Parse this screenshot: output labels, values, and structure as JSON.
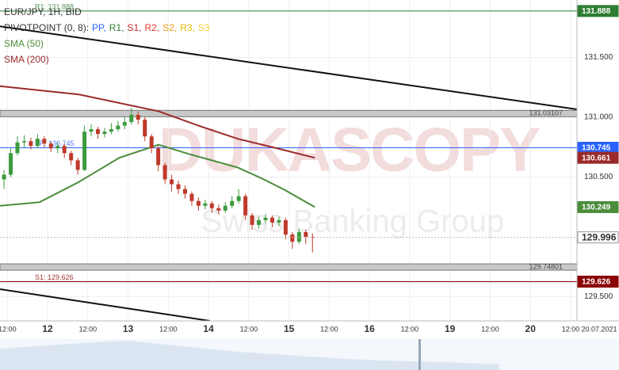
{
  "chart_data": {
    "type": "candlestick",
    "title": "EUR/JPY, 1H, BID",
    "pivot_title": "PIVOTPOINT (0, 8):",
    "pivot_legend": [
      {
        "text": "PP,",
        "color": "#2962ff"
      },
      {
        "text": "R1,",
        "color": "#2e7d32"
      },
      {
        "text": "S1,",
        "color": "#c62828"
      },
      {
        "text": "R2,",
        "color": "#e53935"
      },
      {
        "text": "S2,",
        "color": "#f39c12"
      },
      {
        "text": "R3,",
        "color": "#e6b800"
      },
      {
        "text": "S3",
        "color": "#f4d03f"
      }
    ],
    "watermark": "DUKASCOPY",
    "watermark_sub": "Swiss Banking Group",
    "x_axis_date": "20.07.2021",
    "xlim": [
      9.8,
      181.9
    ],
    "xticks": [
      {
        "value": 12,
        "label": "12:00"
      },
      {
        "value": 24,
        "label": "12"
      },
      {
        "value": 36,
        "label": "12:00"
      },
      {
        "value": 48,
        "label": "13"
      },
      {
        "value": 60,
        "label": "12:00"
      },
      {
        "value": 72,
        "label": "14"
      },
      {
        "value": 84,
        "label": "12:00"
      },
      {
        "value": 96,
        "label": "15"
      },
      {
        "value": 108,
        "label": "12:00"
      },
      {
        "value": 120,
        "label": "16"
      },
      {
        "value": 132,
        "label": "12:00"
      },
      {
        "value": 144,
        "label": "19"
      },
      {
        "value": 156,
        "label": "12:00"
      },
      {
        "value": 168,
        "label": "20"
      },
      {
        "value": 180,
        "label": "12:00"
      }
    ],
    "ylim": [
      129.298,
      131.98
    ],
    "yticks": [
      {
        "value": 131.5,
        "label": "131.500"
      },
      {
        "value": 131,
        "label": "131.000"
      },
      {
        "value": 130.5,
        "label": "130.500"
      },
      {
        "value": 129.5,
        "label": "129.500"
      }
    ],
    "grid": true,
    "candles": {
      "up_color": "#3c9a3c",
      "down_color": "#c0392b",
      "x": [
        11,
        13,
        15,
        17,
        19,
        21,
        23,
        25,
        27,
        29,
        31,
        33,
        35,
        37,
        39,
        41,
        43,
        45,
        47,
        49,
        51,
        53,
        55,
        57,
        59,
        61,
        63,
        65,
        67,
        69,
        71,
        73,
        75,
        77,
        79,
        81,
        83,
        85,
        87,
        89,
        91,
        93,
        95,
        97,
        99,
        101,
        103
      ],
      "open": [
        130.48,
        130.52,
        130.7,
        130.79,
        130.8,
        130.76,
        130.82,
        130.78,
        130.74,
        130.76,
        130.7,
        130.64,
        130.56,
        130.88,
        130.9,
        130.86,
        130.88,
        130.9,
        130.93,
        130.96,
        131.02,
        130.98,
        130.84,
        130.74,
        130.6,
        130.48,
        130.44,
        130.4,
        130.36,
        130.3,
        130.26,
        130.28,
        130.24,
        130.22,
        130.26,
        130.3,
        130.34,
        130.18,
        130.1,
        130.14,
        130.16,
        130.12,
        130.14,
        130.02,
        129.96,
        130.04,
        130.0
      ],
      "high": [
        130.56,
        130.74,
        130.84,
        130.85,
        130.83,
        130.86,
        130.84,
        130.8,
        130.79,
        130.78,
        130.72,
        130.66,
        130.93,
        130.94,
        130.92,
        130.91,
        130.95,
        130.97,
        131.0,
        131.08,
        131.05,
        131.0,
        130.86,
        130.76,
        130.62,
        130.52,
        130.47,
        130.43,
        130.38,
        130.33,
        130.31,
        130.3,
        130.27,
        130.29,
        130.34,
        130.4,
        130.36,
        130.2,
        130.17,
        130.19,
        130.18,
        130.17,
        130.16,
        130.04,
        130.07,
        130.06,
        130.03
      ],
      "low": [
        130.4,
        130.5,
        130.68,
        130.75,
        130.73,
        130.74,
        130.75,
        130.71,
        130.7,
        130.66,
        130.6,
        130.52,
        130.55,
        130.84,
        130.82,
        130.83,
        130.86,
        130.88,
        130.9,
        130.94,
        130.94,
        130.8,
        130.7,
        130.55,
        130.44,
        130.38,
        130.36,
        130.32,
        130.26,
        130.22,
        130.23,
        130.2,
        130.19,
        130.2,
        130.24,
        130.28,
        130.14,
        130.06,
        130.07,
        130.11,
        130.08,
        130.09,
        129.98,
        129.9,
        129.94,
        129.94,
        129.87
      ],
      "close": [
        130.52,
        130.7,
        130.79,
        130.8,
        130.76,
        130.82,
        130.78,
        130.74,
        130.76,
        130.7,
        130.64,
        130.56,
        130.88,
        130.9,
        130.86,
        130.88,
        130.9,
        130.93,
        130.96,
        131.02,
        130.98,
        130.84,
        130.74,
        130.6,
        130.48,
        130.44,
        130.4,
        130.36,
        130.3,
        130.26,
        130.28,
        130.24,
        130.22,
        130.26,
        130.3,
        130.34,
        130.18,
        130.1,
        130.14,
        130.16,
        130.12,
        130.14,
        130.02,
        129.96,
        130.04,
        130.0,
        129.996
      ]
    },
    "series": [
      {
        "name": "SMA (50)",
        "color": "#4a8c3a",
        "x": [
          9.8,
          21.6,
          33.4,
          45.3,
          57.1,
          66.5,
          80.7,
          87.8,
          94.9,
          103.7
        ],
        "values": [
          130.26,
          130.29,
          130.46,
          130.66,
          130.77,
          130.69,
          130.58,
          130.49,
          130.39,
          130.249
        ]
      },
      {
        "name": "SMA (200)",
        "color": "#9b2a2a",
        "x": [
          9.8,
          33.4,
          57.1,
          69,
          80.7,
          92.5,
          103.7
        ],
        "values": [
          131.26,
          131.19,
          131.05,
          130.93,
          130.82,
          130.74,
          130.661
        ]
      }
    ],
    "pivot_levels": [
      {
        "label": "R1: 131.888",
        "value": 131.888,
        "color": "#2e7d32"
      },
      {
        "label": "PP: 130.745",
        "value": 130.745,
        "color": "#2962ff"
      },
      {
        "label": "S1: 129.626",
        "value": 129.626,
        "color": "#8b0000"
      }
    ],
    "bands": [
      131.03107,
      129.74801
    ],
    "trendlines": [
      {
        "x": [
          9.8,
          181.9
        ],
        "y": [
          131.76,
          131.066
        ]
      },
      {
        "x": [
          9.8,
          72.4
        ],
        "y": [
          129.563,
          129.298
        ]
      }
    ]
  }
}
